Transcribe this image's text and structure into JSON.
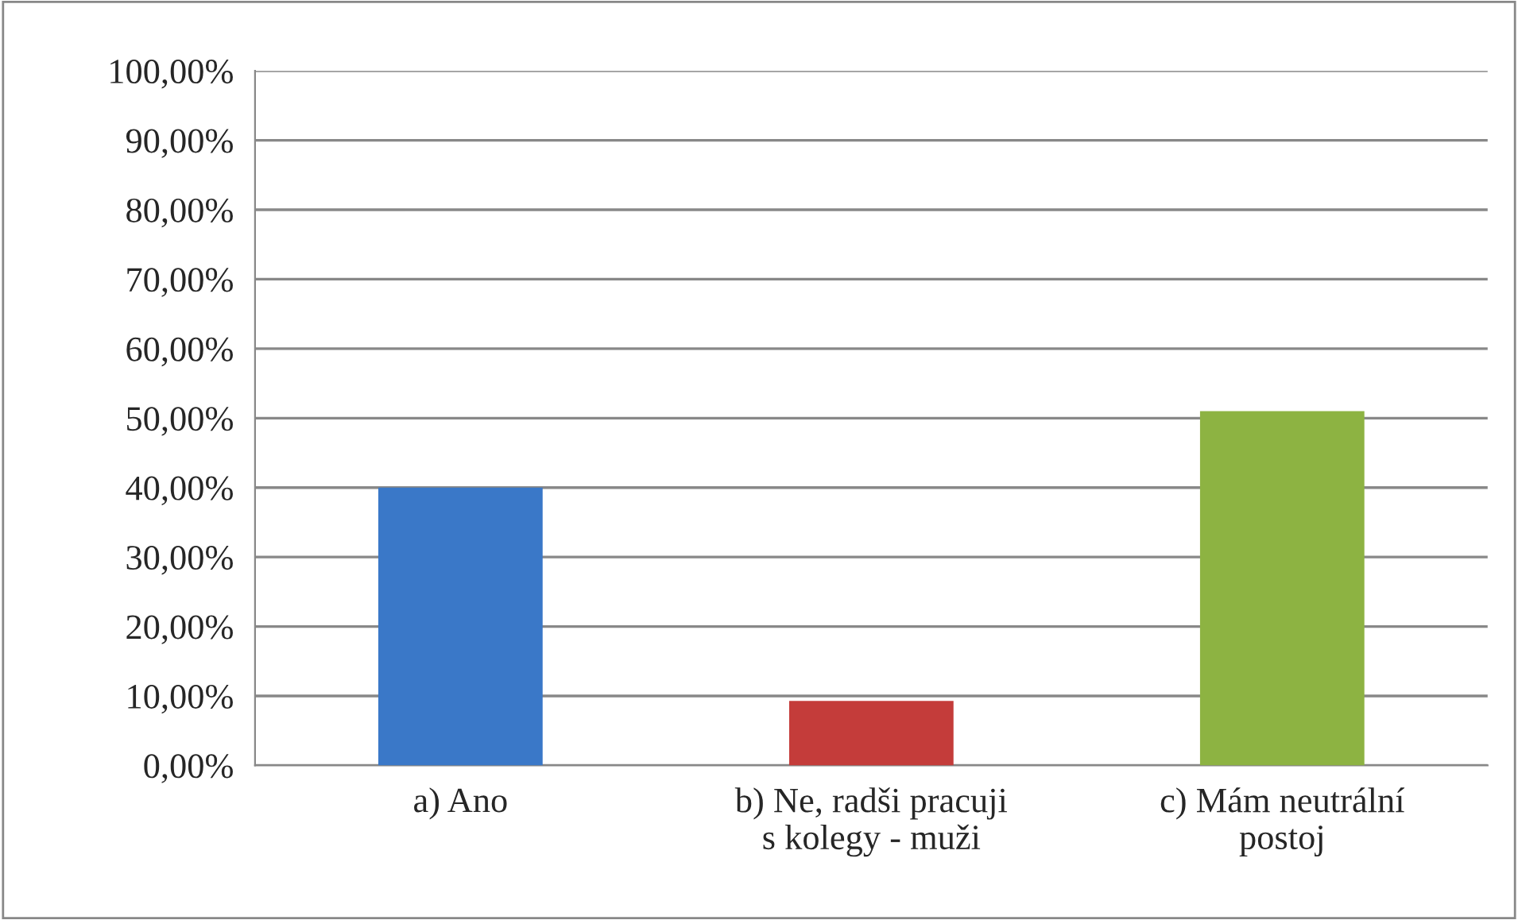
{
  "chart_data": {
    "type": "bar",
    "categories": [
      "a) Ano",
      "b) Ne, radši pracuji\ns kolegy - muži",
      "c) Mám neutrální\npostoj"
    ],
    "values": [
      40,
      9.3,
      51
    ],
    "colors": [
      "#3a78c8",
      "#c43c3a",
      "#8db342"
    ],
    "ylim": [
      0,
      100
    ],
    "yticks": [
      {
        "value": 0,
        "label": "0,00%"
      },
      {
        "value": 10,
        "label": "10,00%"
      },
      {
        "value": 20,
        "label": "20,00%"
      },
      {
        "value": 30,
        "label": "30,00%"
      },
      {
        "value": 40,
        "label": "40,00%"
      },
      {
        "value": 50,
        "label": "50,00%"
      },
      {
        "value": 60,
        "label": "60,00%"
      },
      {
        "value": 70,
        "label": "70,00%"
      },
      {
        "value": 80,
        "label": "80,00%"
      },
      {
        "value": 90,
        "label": "90,00%"
      },
      {
        "value": 100,
        "label": "100,00%"
      }
    ],
    "grid": "y",
    "legend": false
  }
}
